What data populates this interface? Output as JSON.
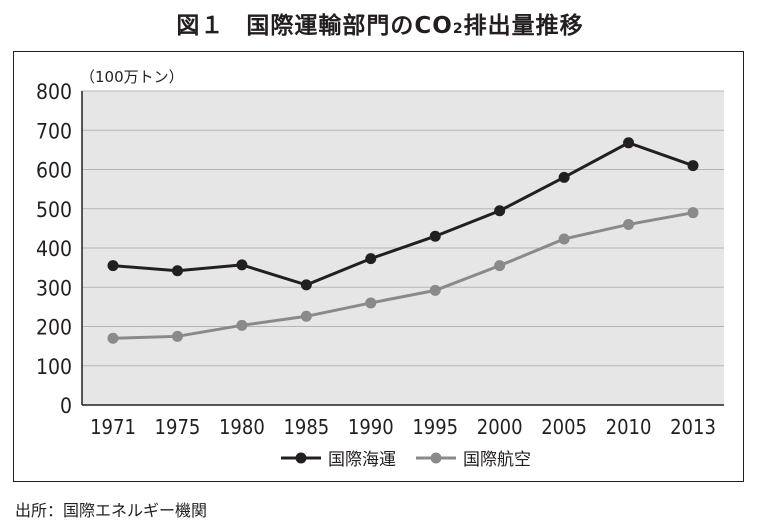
{
  "figure": {
    "number": "図１",
    "title_main": "国際運輸部門のCO",
    "title_sub": "2",
    "title_tail": "排出量推移"
  },
  "source": "出所：国際エネルギー機関",
  "chart_data": {
    "type": "line",
    "title": "国際運輸部門のCO2排出量推移",
    "unit_label": "（100万トン）",
    "ylim": [
      0,
      800
    ],
    "yticks": [
      0,
      100,
      200,
      300,
      400,
      500,
      600,
      700,
      800
    ],
    "categories": [
      "1971",
      "1975",
      "1980",
      "1985",
      "1990",
      "1995",
      "2000",
      "2005",
      "2010",
      "2013"
    ],
    "grid": true,
    "legend_position": "bottom",
    "series": [
      {
        "name": "国際海運",
        "color": "#231f20",
        "values": [
          355,
          342,
          357,
          306,
          373,
          430,
          495,
          580,
          668,
          610
        ]
      },
      {
        "name": "国際航空",
        "color": "#8a8a8a",
        "values": [
          170,
          175,
          203,
          226,
          260,
          292,
          355,
          423,
          460,
          490
        ]
      }
    ]
  }
}
